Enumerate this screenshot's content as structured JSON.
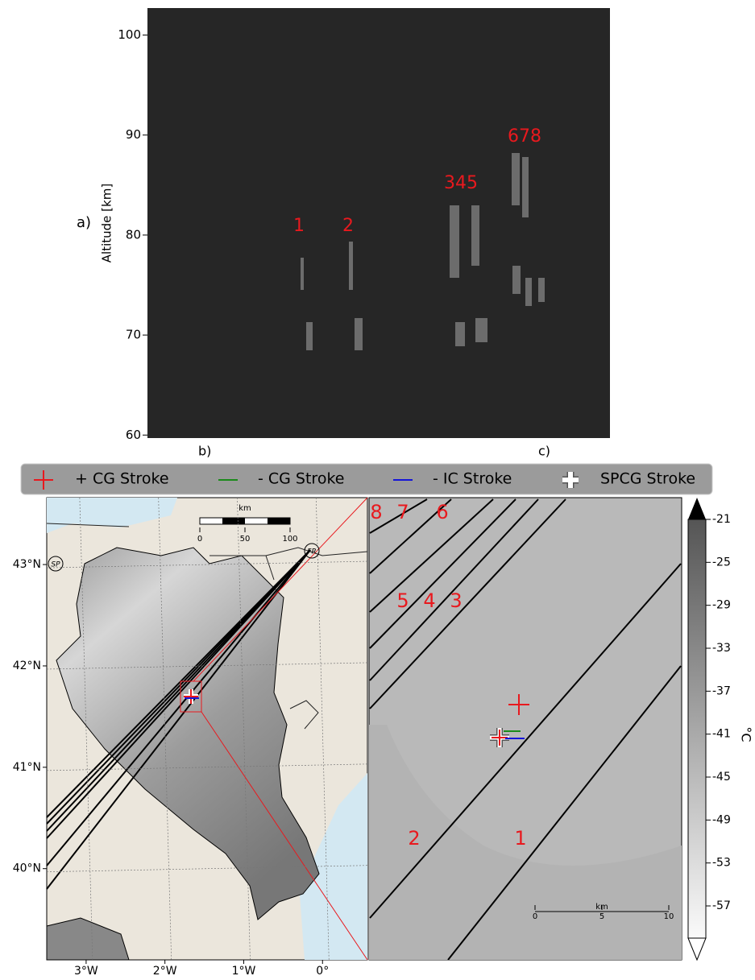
{
  "panel_a": {
    "label": "a)",
    "ylabel": "Altitude [km]",
    "ylim": [
      59.7,
      102.7
    ],
    "yticks": [
      60,
      70,
      80,
      90,
      100
    ],
    "annotations": [
      "1",
      "2",
      "345",
      "678"
    ]
  },
  "panel_b": {
    "label": "b)",
    "xlim": [
      -3.5,
      0.57
    ],
    "ylim": [
      39.1,
      43.66
    ],
    "xticks": [
      {
        "value": -3,
        "label": "3°W"
      },
      {
        "value": -2,
        "label": "2°W"
      },
      {
        "value": -1,
        "label": "1°W"
      },
      {
        "value": 0,
        "label": "0°"
      }
    ],
    "yticks": [
      {
        "value": 40,
        "label": "40°N"
      },
      {
        "value": 41,
        "label": "41°N"
      },
      {
        "value": 42,
        "label": "42°N"
      },
      {
        "value": 43,
        "label": "43°N"
      }
    ],
    "place_labels": [
      "SP",
      "FR"
    ],
    "scale_bar": {
      "unit": "km",
      "ticks": [
        0,
        50,
        100
      ]
    }
  },
  "panel_c": {
    "label": "c)",
    "stroke_labels": [
      "8",
      "7",
      "6",
      "5",
      "4",
      "3",
      "2",
      "1"
    ],
    "scale_bar": {
      "unit": "km",
      "ticks": [
        0,
        5,
        10
      ]
    }
  },
  "legend": [
    {
      "name": "+ CG Stroke",
      "color": "#e8191e"
    },
    {
      "name": "- CG Stroke",
      "color": "#1a8a1a"
    },
    {
      "name": "- IC Stroke",
      "color": "#1414d8"
    },
    {
      "name": "SPCG Stroke",
      "color": "#ffffff"
    }
  ],
  "colorbar": {
    "label": "°C",
    "clim": [
      -60,
      -21
    ],
    "ticks": [
      -21,
      -25,
      -29,
      -33,
      -37,
      -41,
      -45,
      -49,
      -53,
      -57
    ]
  }
}
